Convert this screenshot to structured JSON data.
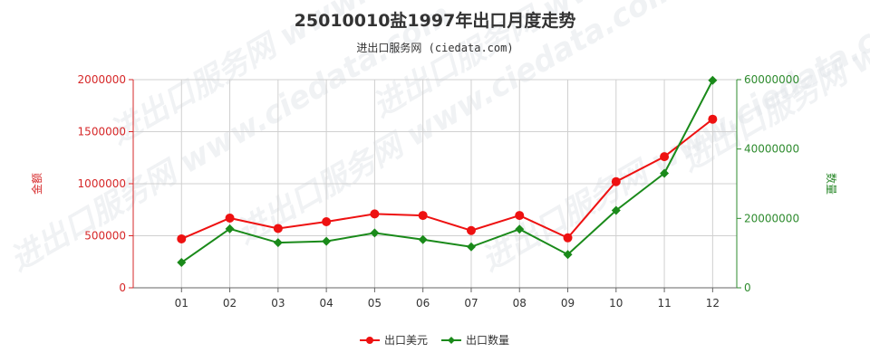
{
  "chart_data": {
    "type": "line",
    "title": "25010010盐1997年出口月度走势",
    "subtitle": "进出口服务网 (ciedata.com)",
    "watermark": "进出口服务网 www.ciedata.com",
    "categories": [
      "01",
      "02",
      "03",
      "04",
      "05",
      "06",
      "07",
      "08",
      "09",
      "10",
      "11",
      "12"
    ],
    "y_left": {
      "label": "金额",
      "ylim": [
        0,
        2000000
      ],
      "ticks": [
        "0",
        "500000",
        "1000000",
        "1500000",
        "2000000"
      ],
      "color": "#d62728"
    },
    "y_right": {
      "label": "数量",
      "ylim": [
        0,
        60000000
      ],
      "ticks": [
        "0",
        "20000000",
        "40000000",
        "60000000"
      ],
      "color": "#2e8b2e"
    },
    "grid": true,
    "legend_position": "bottom-center",
    "series": [
      {
        "name": "出口美元",
        "axis": "left",
        "color": "#ee1111",
        "values": [
          470000,
          670000,
          570000,
          635000,
          710000,
          695000,
          550000,
          695000,
          480000,
          1020000,
          1260000,
          1620000
        ]
      },
      {
        "name": "出口数量",
        "axis": "right",
        "color": "#1a8a1a",
        "values": [
          7300000,
          17000000,
          13000000,
          13400000,
          15800000,
          13900000,
          11800000,
          16900000,
          9600000,
          22300000,
          33000000,
          59800000
        ]
      }
    ]
  }
}
